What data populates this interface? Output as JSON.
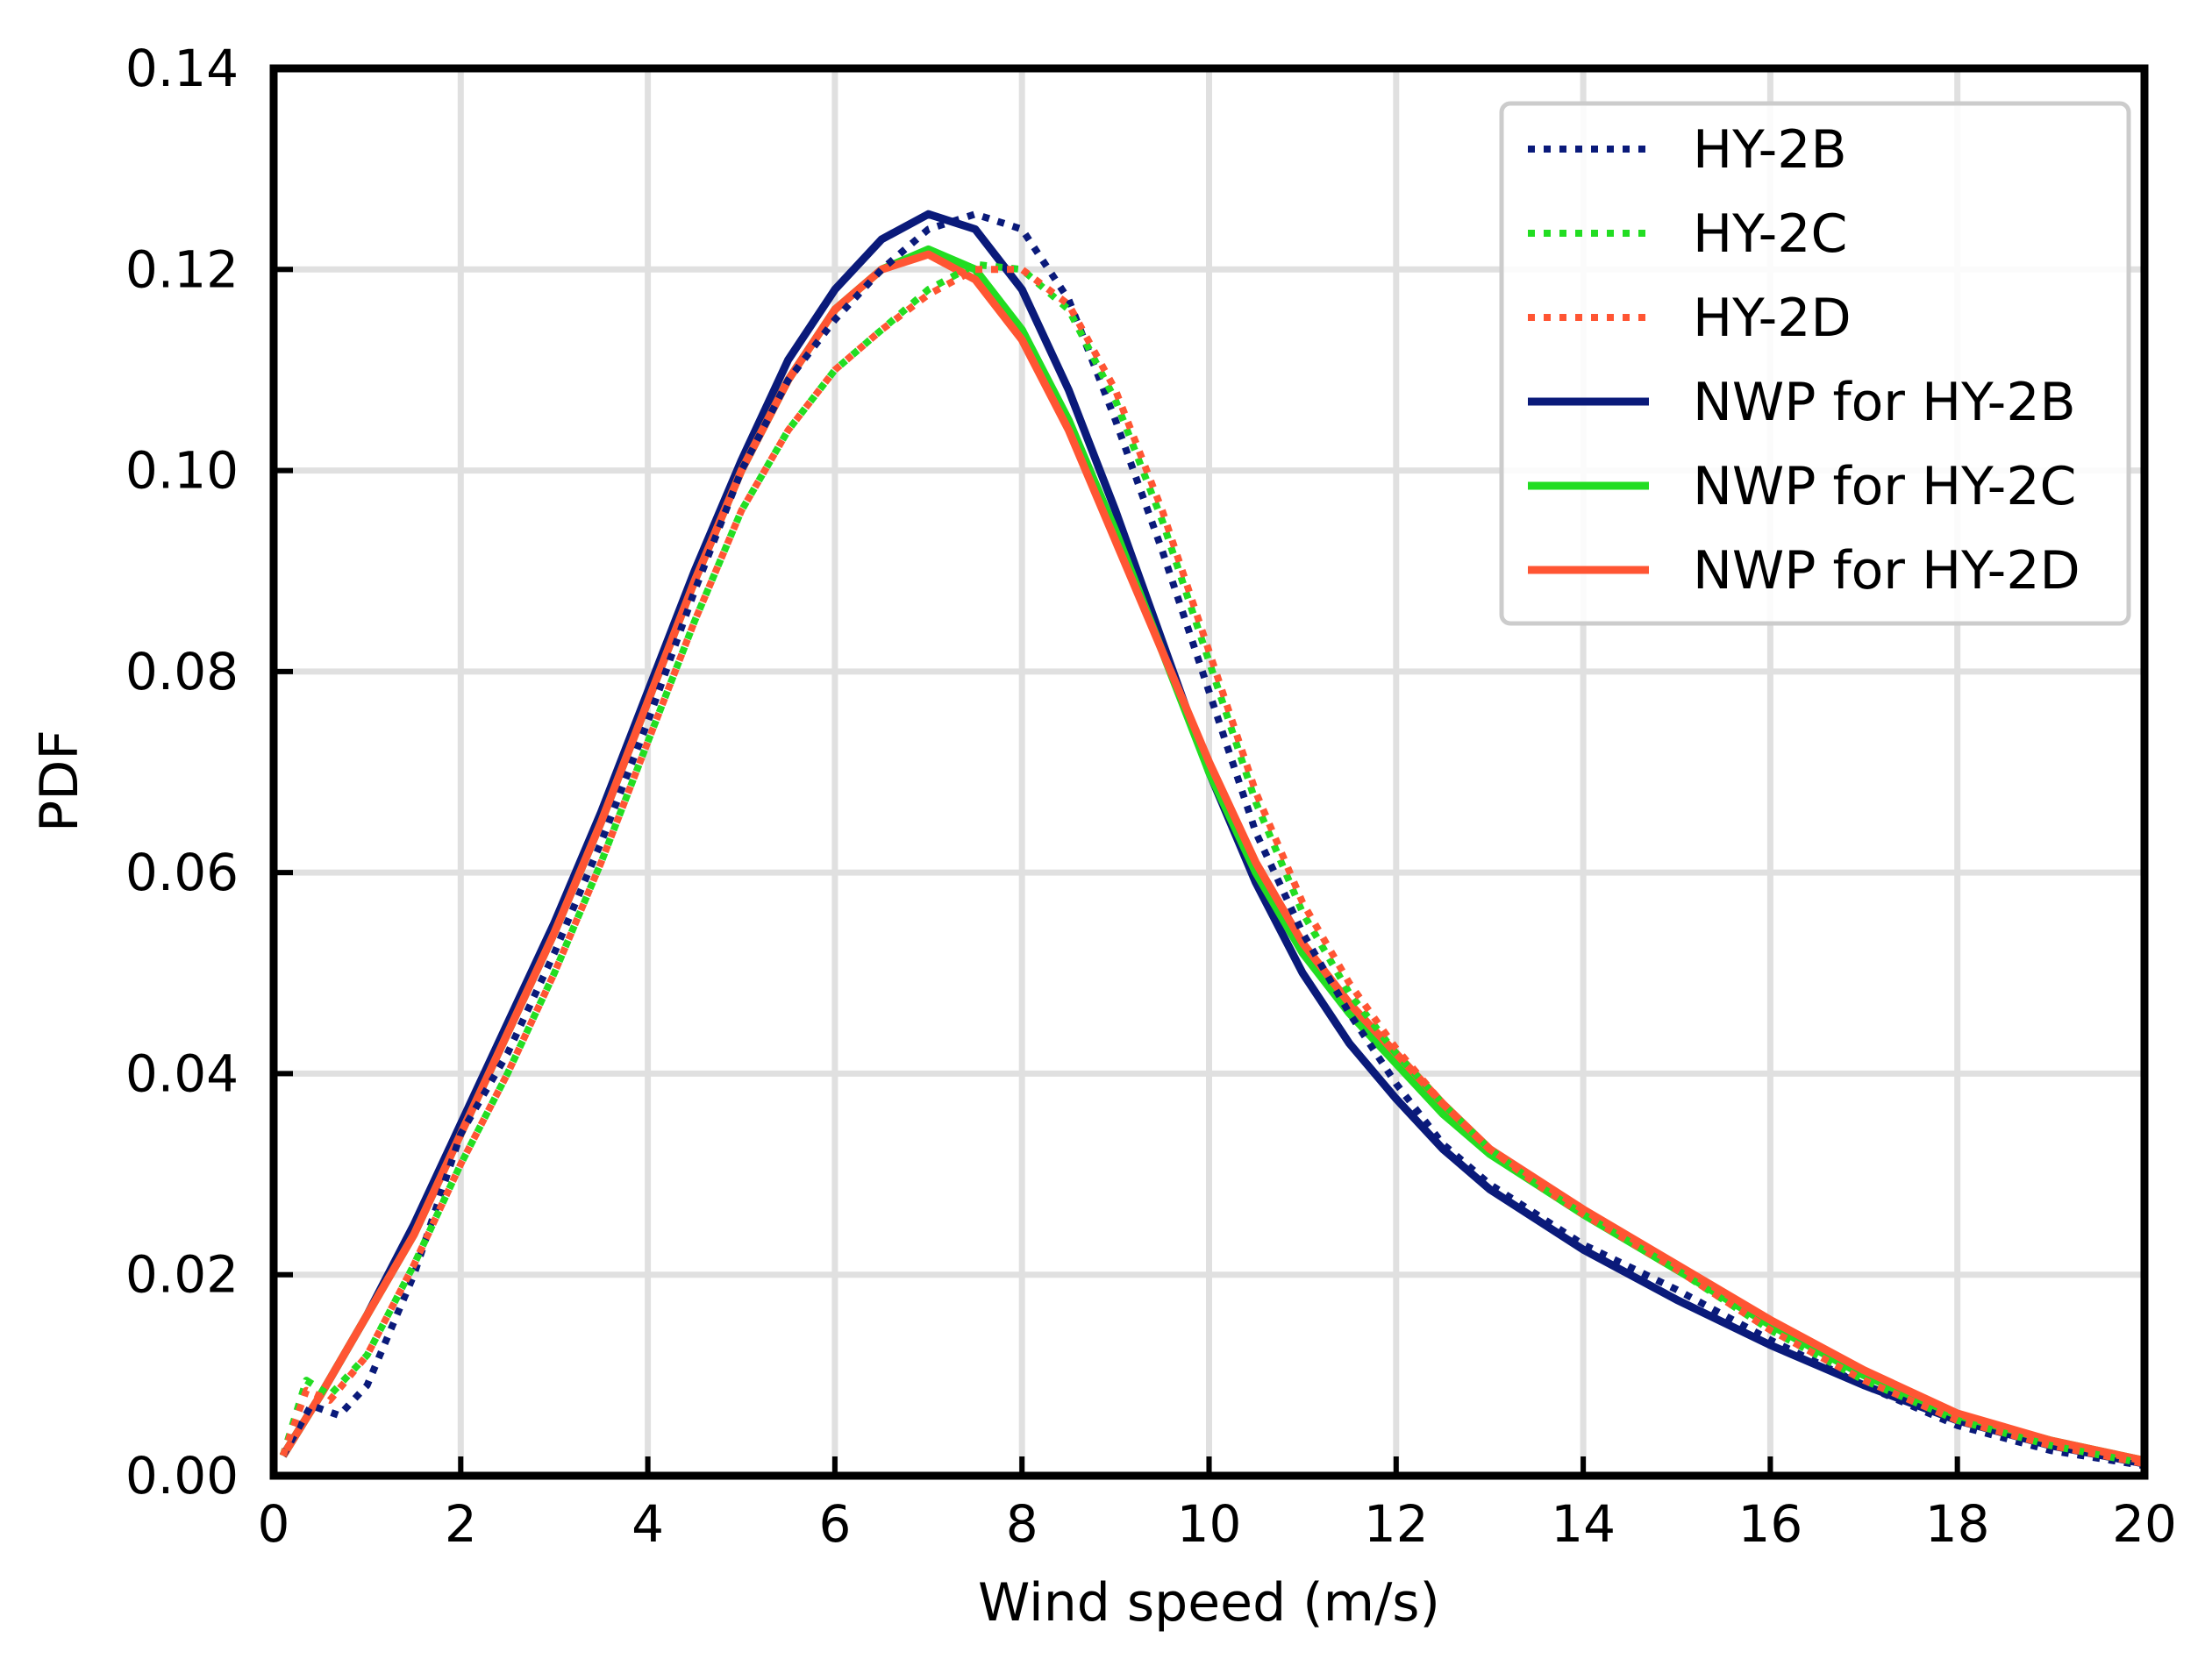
{
  "chart_data": {
    "type": "line",
    "title": "",
    "xlabel": "Wind speed (m/s)",
    "ylabel": "PDF",
    "xlim": [
      0,
      20
    ],
    "ylim": [
      0,
      0.14
    ],
    "xticks": [
      0,
      2,
      4,
      6,
      8,
      10,
      12,
      14,
      16,
      18,
      20
    ],
    "yticks": [
      0.0,
      0.02,
      0.04,
      0.06,
      0.08,
      0.1,
      0.12,
      0.14
    ],
    "xtick_labels": [
      "0",
      "2",
      "4",
      "6",
      "8",
      "10",
      "12",
      "14",
      "16",
      "18",
      "20"
    ],
    "ytick_labels": [
      "0.00",
      "0.02",
      "0.04",
      "0.06",
      "0.08",
      "0.10",
      "0.12",
      "0.14"
    ],
    "grid": true,
    "legend_position": "top-right",
    "series": [
      {
        "name": "HY-2B",
        "style": "dotted",
        "color": "#0a1a7a",
        "x": [
          0.1,
          0.4,
          0.7,
          1.0,
          1.5,
          2.0,
          2.5,
          3.0,
          3.5,
          4.0,
          4.5,
          5.0,
          5.5,
          6.0,
          6.5,
          7.0,
          7.5,
          8.0,
          8.5,
          9.0,
          9.5,
          10.0,
          10.5,
          11.0,
          11.5,
          12.0,
          12.5,
          13.0,
          13.5,
          14.0,
          15.0,
          16.0,
          17.0,
          18.0,
          19.0,
          20.0
        ],
        "y": [
          0.002,
          0.007,
          0.006,
          0.009,
          0.02,
          0.034,
          0.042,
          0.052,
          0.063,
          0.075,
          0.088,
          0.1,
          0.109,
          0.115,
          0.12,
          0.124,
          0.1255,
          0.124,
          0.117,
          0.105,
          0.092,
          0.078,
          0.064,
          0.054,
          0.046,
          0.039,
          0.033,
          0.029,
          0.026,
          0.023,
          0.0185,
          0.0135,
          0.009,
          0.005,
          0.0025,
          0.001
        ]
      },
      {
        "name": "HY-2C",
        "style": "dotted",
        "color": "#22dd22",
        "x": [
          0.1,
          0.35,
          0.6,
          1.0,
          1.5,
          2.0,
          2.5,
          3.0,
          3.5,
          4.0,
          4.5,
          5.0,
          5.5,
          6.0,
          6.5,
          7.0,
          7.5,
          8.0,
          8.5,
          9.0,
          9.5,
          10.0,
          10.5,
          11.0,
          11.5,
          12.0,
          12.5,
          13.0,
          13.5,
          14.0,
          15.0,
          16.0,
          17.0,
          18.0,
          19.0,
          20.0
        ],
        "y": [
          0.002,
          0.0095,
          0.008,
          0.012,
          0.021,
          0.031,
          0.04,
          0.05,
          0.061,
          0.073,
          0.085,
          0.096,
          0.104,
          0.11,
          0.114,
          0.118,
          0.1205,
          0.12,
          0.116,
          0.107,
          0.095,
          0.081,
          0.067,
          0.056,
          0.048,
          0.042,
          0.037,
          0.0325,
          0.029,
          0.026,
          0.0205,
          0.0145,
          0.0095,
          0.0055,
          0.003,
          0.0012
        ]
      },
      {
        "name": "HY-2D",
        "style": "dotted",
        "color": "#ff5533",
        "x": [
          0.1,
          0.35,
          0.6,
          1.0,
          1.5,
          2.0,
          2.5,
          3.0,
          3.5,
          4.0,
          4.5,
          5.0,
          5.5,
          6.0,
          6.5,
          7.0,
          7.5,
          8.0,
          8.5,
          9.0,
          9.5,
          10.0,
          10.5,
          11.0,
          11.5,
          12.0,
          12.5,
          13.0,
          13.5,
          14.0,
          15.0,
          16.0,
          17.0,
          18.0,
          19.0,
          20.0
        ],
        "y": [
          0.002,
          0.0085,
          0.0075,
          0.012,
          0.021,
          0.031,
          0.04,
          0.05,
          0.061,
          0.073,
          0.085,
          0.096,
          0.104,
          0.11,
          0.114,
          0.1175,
          0.12,
          0.12,
          0.1165,
          0.108,
          0.096,
          0.082,
          0.068,
          0.057,
          0.049,
          0.0425,
          0.037,
          0.0325,
          0.029,
          0.026,
          0.0205,
          0.0145,
          0.0095,
          0.0055,
          0.003,
          0.0012
        ]
      },
      {
        "name": "NWP for HY-2B",
        "style": "solid",
        "color": "#0a1a7a",
        "x": [
          0.1,
          0.5,
          1.0,
          1.5,
          2.0,
          2.5,
          3.0,
          3.5,
          4.0,
          4.5,
          5.0,
          5.5,
          6.0,
          6.5,
          7.0,
          7.5,
          8.0,
          8.5,
          9.0,
          9.5,
          10.0,
          10.5,
          11.0,
          11.5,
          12.0,
          12.5,
          13.0,
          13.5,
          14.0,
          15.0,
          16.0,
          17.0,
          18.0,
          19.0,
          20.0
        ],
        "y": [
          0.002,
          0.008,
          0.016,
          0.025,
          0.035,
          0.045,
          0.055,
          0.066,
          0.078,
          0.09,
          0.101,
          0.111,
          0.118,
          0.123,
          0.1255,
          0.124,
          0.118,
          0.108,
          0.096,
          0.083,
          0.07,
          0.059,
          0.05,
          0.043,
          0.0375,
          0.0325,
          0.0285,
          0.0255,
          0.0225,
          0.0175,
          0.013,
          0.009,
          0.0055,
          0.003,
          0.0012
        ]
      },
      {
        "name": "NWP for HY-2C",
        "style": "solid",
        "color": "#22dd22",
        "x": [
          0.1,
          0.5,
          1.0,
          1.5,
          2.0,
          2.5,
          3.0,
          3.5,
          4.0,
          4.5,
          5.0,
          5.5,
          6.0,
          6.5,
          7.0,
          7.5,
          8.0,
          8.5,
          9.0,
          9.5,
          10.0,
          10.5,
          11.0,
          11.5,
          12.0,
          12.5,
          13.0,
          13.5,
          14.0,
          15.0,
          16.0,
          17.0,
          18.0,
          19.0,
          20.0
        ],
        "y": [
          0.002,
          0.008,
          0.016,
          0.024,
          0.034,
          0.044,
          0.054,
          0.065,
          0.077,
          0.089,
          0.1,
          0.109,
          0.116,
          0.12,
          0.122,
          0.12,
          0.114,
          0.105,
          0.094,
          0.082,
          0.07,
          0.06,
          0.052,
          0.046,
          0.041,
          0.036,
          0.032,
          0.029,
          0.026,
          0.0205,
          0.015,
          0.01,
          0.006,
          0.0035,
          0.0015
        ]
      },
      {
        "name": "NWP for HY-2D",
        "style": "solid",
        "color": "#ff5533",
        "x": [
          0.1,
          0.5,
          1.0,
          1.5,
          2.0,
          2.5,
          3.0,
          3.5,
          4.0,
          4.5,
          5.0,
          5.5,
          6.0,
          6.5,
          7.0,
          7.5,
          8.0,
          8.5,
          9.0,
          9.5,
          10.0,
          10.5,
          11.0,
          11.5,
          12.0,
          12.5,
          13.0,
          13.5,
          14.0,
          15.0,
          16.0,
          17.0,
          18.0,
          19.0,
          20.0
        ],
        "y": [
          0.002,
          0.008,
          0.016,
          0.024,
          0.034,
          0.044,
          0.054,
          0.065,
          0.077,
          0.089,
          0.1,
          0.109,
          0.116,
          0.12,
          0.1215,
          0.119,
          0.113,
          0.104,
          0.093,
          0.082,
          0.071,
          0.061,
          0.053,
          0.047,
          0.042,
          0.037,
          0.0325,
          0.0295,
          0.0265,
          0.021,
          0.0155,
          0.0105,
          0.0062,
          0.0035,
          0.0015
        ]
      }
    ]
  }
}
